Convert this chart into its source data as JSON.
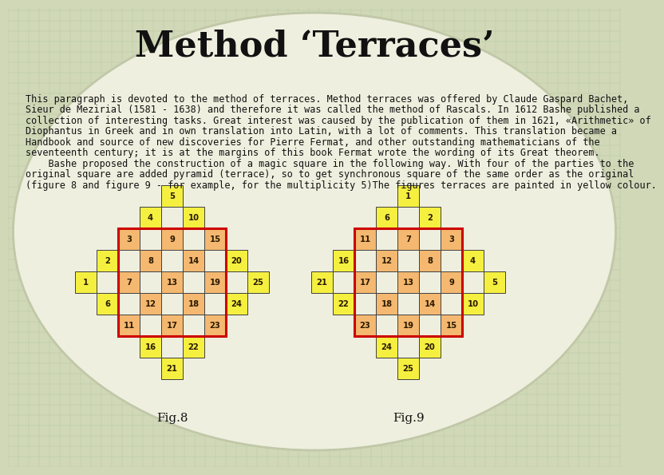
{
  "title": "Method ‘Terraces’",
  "title_fontsize": 32,
  "title_font": "serif",
  "bg_color": "#d0d8b8",
  "grid_color": "#b8c8a0",
  "body_text_1": "This paragraph is devoted to the method of terraces. Method terraces was offered by Claude Gaspard Bachet,",
  "body_text_2": "Sieur de Mezirial (1581 - 1638) and therefore it was called the method of Rascals. In 1612 Bashe published a",
  "body_text_3": "collection of interesting tasks. Great interest was caused by the publication of them in 1621, «Arithmetic» of",
  "body_text_4": "Diophantus in Greek and in own translation into Latin, with a lot of comments. This translation became a",
  "body_text_5": "Handbook and source of new discoveries for Pierre Fermat, and other outstanding mathematicians of the",
  "body_text_6": "seventeenth century; it is at the margins of this book Fermat wrote the wording of its Great theorem.",
  "body_text_7": "    Bashe proposed the construction of a magic square in the following way. With four of the parties to the",
  "body_text_8": "original square are added pyramid (terrace), so to get synchronous square of the same order as the original",
  "body_text_9": "(figure 8 and figure 9 - for example, for the multiplicity 5)The figures terraces are painted in yellow colour.",
  "body_fontsize": 8.5,
  "yellow_fill": "#f5f040",
  "orange_fill": "#f5b870",
  "red_border": "#cc0000",
  "dark_border": "#404040",
  "fig8_label": "Fig.8",
  "fig9_label": "Fig.9",
  "fig8_cells": [
    {
      "r": 0,
      "c": 3,
      "val": "5",
      "fill": "yellow"
    },
    {
      "r": 1,
      "c": 2,
      "val": "4",
      "fill": "yellow"
    },
    {
      "r": 1,
      "c": 4,
      "val": "10",
      "fill": "yellow"
    },
    {
      "r": 2,
      "c": 1,
      "val": "3",
      "fill": "orange"
    },
    {
      "r": 2,
      "c": 3,
      "val": "9",
      "fill": "orange"
    },
    {
      "r": 2,
      "c": 5,
      "val": "15",
      "fill": "orange"
    },
    {
      "r": 3,
      "c": 0,
      "val": "2",
      "fill": "yellow"
    },
    {
      "r": 3,
      "c": 2,
      "val": "8",
      "fill": "orange"
    },
    {
      "r": 3,
      "c": 4,
      "val": "14",
      "fill": "orange"
    },
    {
      "r": 3,
      "c": 6,
      "val": "20",
      "fill": "yellow"
    },
    {
      "r": 4,
      "c": -1,
      "val": "1",
      "fill": "yellow"
    },
    {
      "r": 4,
      "c": 1,
      "val": "7",
      "fill": "orange"
    },
    {
      "r": 4,
      "c": 3,
      "val": "13",
      "fill": "orange"
    },
    {
      "r": 4,
      "c": 5,
      "val": "19",
      "fill": "orange"
    },
    {
      "r": 4,
      "c": 7,
      "val": "25",
      "fill": "yellow"
    },
    {
      "r": 5,
      "c": 0,
      "val": "6",
      "fill": "yellow"
    },
    {
      "r": 5,
      "c": 2,
      "val": "12",
      "fill": "orange"
    },
    {
      "r": 5,
      "c": 4,
      "val": "18",
      "fill": "orange"
    },
    {
      "r": 5,
      "c": 6,
      "val": "24",
      "fill": "yellow"
    },
    {
      "r": 6,
      "c": 1,
      "val": "11",
      "fill": "orange"
    },
    {
      "r": 6,
      "c": 3,
      "val": "17",
      "fill": "orange"
    },
    {
      "r": 6,
      "c": 5,
      "val": "23",
      "fill": "orange"
    },
    {
      "r": 7,
      "c": 2,
      "val": "16",
      "fill": "yellow"
    },
    {
      "r": 7,
      "c": 4,
      "val": "22",
      "fill": "yellow"
    },
    {
      "r": 8,
      "c": 3,
      "val": "21",
      "fill": "yellow"
    }
  ],
  "fig8_red": {
    "r_min": 2,
    "r_max": 6,
    "c_min": 1,
    "c_max": 5
  },
  "fig9_cells": [
    {
      "r": 0,
      "c": 3,
      "val": "1",
      "fill": "yellow"
    },
    {
      "r": 1,
      "c": 2,
      "val": "6",
      "fill": "yellow"
    },
    {
      "r": 1,
      "c": 4,
      "val": "2",
      "fill": "yellow"
    },
    {
      "r": 2,
      "c": 1,
      "val": "11",
      "fill": "orange"
    },
    {
      "r": 2,
      "c": 3,
      "val": "7",
      "fill": "orange"
    },
    {
      "r": 2,
      "c": 5,
      "val": "3",
      "fill": "orange"
    },
    {
      "r": 3,
      "c": 0,
      "val": "16",
      "fill": "yellow"
    },
    {
      "r": 3,
      "c": 2,
      "val": "12",
      "fill": "orange"
    },
    {
      "r": 3,
      "c": 4,
      "val": "8",
      "fill": "orange"
    },
    {
      "r": 3,
      "c": 6,
      "val": "4",
      "fill": "yellow"
    },
    {
      "r": 4,
      "c": -1,
      "val": "21",
      "fill": "yellow"
    },
    {
      "r": 4,
      "c": 1,
      "val": "17",
      "fill": "orange"
    },
    {
      "r": 4,
      "c": 3,
      "val": "13",
      "fill": "orange"
    },
    {
      "r": 4,
      "c": 5,
      "val": "9",
      "fill": "orange"
    },
    {
      "r": 4,
      "c": 7,
      "val": "5",
      "fill": "yellow"
    },
    {
      "r": 5,
      "c": 0,
      "val": "22",
      "fill": "yellow"
    },
    {
      "r": 5,
      "c": 2,
      "val": "18",
      "fill": "orange"
    },
    {
      "r": 5,
      "c": 4,
      "val": "14",
      "fill": "orange"
    },
    {
      "r": 5,
      "c": 6,
      "val": "10",
      "fill": "yellow"
    },
    {
      "r": 6,
      "c": 1,
      "val": "23",
      "fill": "orange"
    },
    {
      "r": 6,
      "c": 3,
      "val": "19",
      "fill": "orange"
    },
    {
      "r": 6,
      "c": 5,
      "val": "15",
      "fill": "orange"
    },
    {
      "r": 7,
      "c": 2,
      "val": "24",
      "fill": "yellow"
    },
    {
      "r": 7,
      "c": 4,
      "val": "20",
      "fill": "yellow"
    },
    {
      "r": 8,
      "c": 3,
      "val": "25",
      "fill": "yellow"
    }
  ],
  "fig9_red": {
    "r_min": 2,
    "r_max": 6,
    "c_min": 1,
    "c_max": 5
  }
}
